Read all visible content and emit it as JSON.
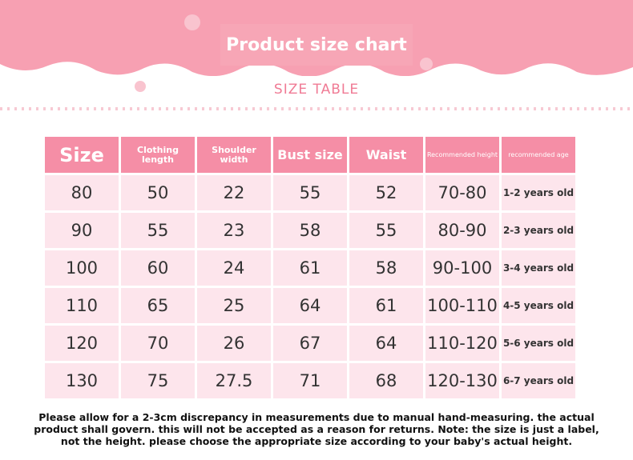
{
  "header": {
    "title": "Product size chart",
    "subtitle": "SIZE TABLE"
  },
  "table": {
    "columns": [
      "Size",
      "Clothing length",
      "Shoulder width",
      "Bust size",
      "Waist",
      "Recommended height",
      "recommended age"
    ],
    "rows": [
      [
        "80",
        "50",
        "22",
        "55",
        "52",
        "70-80",
        "1-2 years old"
      ],
      [
        "90",
        "55",
        "23",
        "58",
        "55",
        "80-90",
        "2-3 years old"
      ],
      [
        "100",
        "60",
        "24",
        "61",
        "58",
        "90-100",
        "3-4 years old"
      ],
      [
        "110",
        "65",
        "25",
        "64",
        "61",
        "100-110",
        "4-5 years old"
      ],
      [
        "120",
        "70",
        "26",
        "67",
        "64",
        "110-120",
        "5-6 years old"
      ],
      [
        "130",
        "75",
        "27.5",
        "71",
        "68",
        "120-130",
        "6-7 years old"
      ]
    ]
  },
  "footer": {
    "lines": [
      "Please allow for a 2-3cm discrepancy in measurements due to manual hand-measuring. the actual",
      "product shall govern. this will not be accepted as a reason for returns. Note: the size is just a label,",
      "not the height. please choose the appropriate size according to your baby's actual height."
    ]
  }
}
